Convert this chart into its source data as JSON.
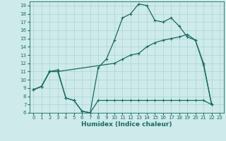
{
  "xlabel": "Humidex (Indice chaleur)",
  "bg_color": "#ceeaea",
  "grid_color": "#aad4d4",
  "line_color": "#1a6b60",
  "xlim": [
    -0.5,
    23.5
  ],
  "ylim": [
    6,
    19.5
  ],
  "xticks": [
    0,
    1,
    2,
    3,
    4,
    5,
    6,
    7,
    8,
    9,
    10,
    11,
    12,
    13,
    14,
    15,
    16,
    17,
    18,
    19,
    20,
    21,
    22,
    23
  ],
  "yticks": [
    6,
    7,
    8,
    9,
    10,
    11,
    12,
    13,
    14,
    15,
    16,
    17,
    18,
    19
  ],
  "line1_x": [
    0,
    1,
    2,
    3,
    4,
    5,
    6,
    7,
    8,
    9,
    10,
    11,
    12,
    13,
    14,
    15,
    16,
    17,
    18,
    19,
    20,
    21,
    22
  ],
  "line1_y": [
    8.8,
    9.2,
    11.0,
    11.0,
    7.8,
    7.5,
    6.2,
    6.0,
    7.5,
    7.5,
    7.5,
    7.5,
    7.5,
    7.5,
    7.5,
    7.5,
    7.5,
    7.5,
    7.5,
    7.5,
    7.5,
    7.5,
    7.0
  ],
  "line2_x": [
    0,
    1,
    2,
    3,
    4,
    5,
    6,
    7,
    8,
    9,
    10,
    11,
    12,
    13,
    14,
    15,
    16,
    17,
    18,
    19,
    20,
    21,
    22
  ],
  "line2_y": [
    8.8,
    9.2,
    11.0,
    11.2,
    7.8,
    7.5,
    6.2,
    6.0,
    11.5,
    12.5,
    14.8,
    17.5,
    18.0,
    19.2,
    19.0,
    17.2,
    17.0,
    17.5,
    16.5,
    15.2,
    14.8,
    11.8,
    7.0
  ],
  "line3_x": [
    0,
    1,
    2,
    3,
    10,
    11,
    12,
    13,
    14,
    15,
    16,
    17,
    18,
    19,
    20,
    21,
    22
  ],
  "line3_y": [
    8.8,
    9.2,
    11.0,
    11.0,
    12.0,
    12.5,
    13.0,
    13.2,
    14.0,
    14.5,
    14.8,
    15.0,
    15.2,
    15.5,
    14.8,
    12.0,
    7.0
  ]
}
